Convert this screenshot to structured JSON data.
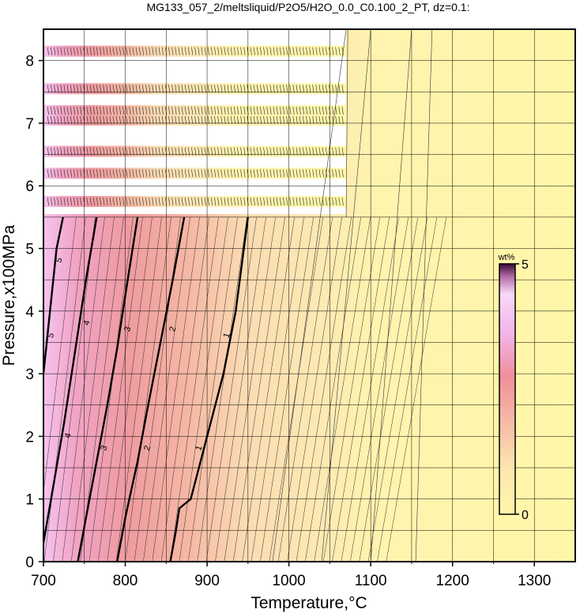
{
  "chart_data": {
    "type": "heatmap",
    "title": "MG133_057_2/meltsliquid/P2O5/H2O_0.0_C0.100_2_PT, dz=0.1:",
    "xlabel": "Temperature,°C",
    "ylabel": "Pressure,x100MPa",
    "xlim": [
      700,
      1350
    ],
    "ylim": [
      0,
      8.5
    ],
    "x_ticks": [
      700,
      800,
      900,
      1000,
      1100,
      1200,
      1300
    ],
    "y_ticks": [
      0,
      1,
      2,
      3,
      4,
      5,
      6,
      7,
      8
    ],
    "grid": true,
    "colorbar": {
      "unit": "wt%",
      "min": 0,
      "max": 5,
      "min_label": "0",
      "max_label": "5",
      "position": "right",
      "colors": [
        "#fff7a8",
        "#fde6b0",
        "#f7b7a6",
        "#f08f9a",
        "#f3b4ea",
        "#f7d8f7",
        "#3a0a3a"
      ]
    },
    "major_contours": [
      {
        "label": "1",
        "points": [
          [
            855,
            0
          ],
          [
            862,
            0.5
          ],
          [
            866,
            0.85
          ],
          [
            880,
            1.0
          ],
          [
            900,
            2.0
          ],
          [
            920,
            3.0
          ],
          [
            935,
            4.0
          ],
          [
            950,
            5.5
          ]
        ]
      },
      {
        "label": "2",
        "points": [
          [
            790,
            0
          ],
          [
            800,
            0.7
          ],
          [
            815,
            1.6
          ],
          [
            828,
            2.5
          ],
          [
            843,
            3.5
          ],
          [
            858,
            4.5
          ],
          [
            872,
            5.5
          ]
        ]
      },
      {
        "label": "3",
        "points": [
          [
            742,
            0
          ],
          [
            752,
            0.7
          ],
          [
            765,
            1.6
          ],
          [
            778,
            2.5
          ],
          [
            790,
            3.4
          ],
          [
            803,
            4.5
          ],
          [
            815,
            5.5
          ]
        ]
      },
      {
        "label": "4",
        "points": [
          [
            700,
            0.3
          ],
          [
            712,
            1.2
          ],
          [
            725,
            2.2
          ],
          [
            738,
            3.3
          ],
          [
            752,
            4.5
          ],
          [
            765,
            5.5
          ]
        ]
      },
      {
        "label": "5",
        "points": [
          [
            700,
            3.0
          ],
          [
            708,
            4.0
          ],
          [
            716,
            5.0
          ],
          [
            724,
            5.5
          ]
        ]
      }
    ],
    "contour_labels": [
      {
        "text": "1",
        "x": 893,
        "y": 1.8
      },
      {
        "text": "1",
        "x": 927,
        "y": 3.6
      },
      {
        "text": "2",
        "x": 830,
        "y": 1.8
      },
      {
        "text": "2",
        "x": 861,
        "y": 3.7
      },
      {
        "text": "3",
        "x": 777,
        "y": 1.8
      },
      {
        "text": "3",
        "x": 806,
        "y": 3.7
      },
      {
        "text": "4",
        "x": 733,
        "y": 2.0
      },
      {
        "text": "4",
        "x": 756,
        "y": 3.8
      },
      {
        "text": "5",
        "x": 712,
        "y": 3.6
      },
      {
        "text": "5",
        "x": 722,
        "y": 4.8
      }
    ],
    "data_bands": [
      5.75,
      6.2,
      6.55,
      7.05,
      7.2,
      7.55,
      8.15
    ],
    "liquidus_boundary": [
      [
        1070,
        5.5
      ],
      [
        1072,
        8.5
      ]
    ]
  }
}
